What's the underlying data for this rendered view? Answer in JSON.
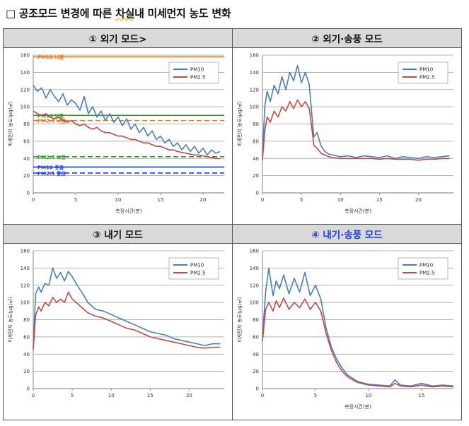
{
  "title": {
    "prefix": "□ 공조모드 변경에 따른 ",
    "underlined": "차실",
    "suffix": "내 미세먼지 농도 변화"
  },
  "panels": [
    {
      "header": "① 외기 모드>",
      "header_color": "#111111"
    },
    {
      "header": "② 외기·송풍 모드",
      "header_color": "#111111"
    },
    {
      "header": "③ 내기 모드",
      "header_color": "#111111"
    },
    {
      "header": "④ 내기·송풍 모드",
      "header_color": "#1f3fd6"
    }
  ],
  "colors": {
    "pm10": "#4a7ebb",
    "pm25": "#be4b48"
  },
  "chart_data": [
    {
      "type": "line",
      "xlabel": "측정시간(분)",
      "ylabel": "미세먼지 농도(μg/㎥)",
      "xlim": [
        0,
        22.5
      ],
      "ylim": [
        0,
        160
      ],
      "xticks": [
        0,
        5,
        10,
        15,
        20
      ],
      "yticks": [
        0,
        20,
        40,
        60,
        80,
        100,
        120,
        140,
        160
      ],
      "legend": "top-right",
      "series": [
        {
          "name": "PM10",
          "color": "#4a7ebb",
          "x": [
            0,
            0.5,
            1,
            1.5,
            2,
            2.5,
            3,
            3.5,
            4,
            4.5,
            5,
            5.5,
            6,
            6.5,
            7,
            7.5,
            8,
            8.5,
            9,
            9.5,
            10,
            10.5,
            11,
            11.5,
            12,
            12.5,
            13,
            13.5,
            14,
            14.5,
            15,
            15.5,
            16,
            16.5,
            17,
            17.5,
            18,
            18.5,
            19,
            19.5,
            20,
            20.5,
            21,
            21.5,
            22
          ],
          "y": [
            125,
            118,
            122,
            110,
            120,
            112,
            106,
            115,
            102,
            108,
            104,
            96,
            112,
            92,
            100,
            88,
            95,
            84,
            92,
            82,
            88,
            78,
            86,
            74,
            80,
            70,
            76,
            66,
            72,
            62,
            66,
            58,
            62,
            54,
            58,
            50,
            56,
            48,
            54,
            46,
            52,
            44,
            50,
            46,
            48
          ]
        },
        {
          "name": "PM2.5",
          "color": "#be4b48",
          "x": [
            0,
            0.5,
            1,
            1.5,
            2,
            2.5,
            3,
            3.5,
            4,
            4.5,
            5,
            5.5,
            6,
            6.5,
            7,
            7.5,
            8,
            8.5,
            9,
            9.5,
            10,
            10.5,
            11,
            11.5,
            12,
            12.5,
            13,
            13.5,
            14,
            14.5,
            15,
            15.5,
            16,
            16.5,
            17,
            17.5,
            18,
            18.5,
            19,
            19.5,
            20,
            20.5,
            21,
            21.5,
            22
          ],
          "y": [
            95,
            92,
            90,
            92,
            88,
            86,
            88,
            84,
            82,
            84,
            80,
            78,
            80,
            76,
            74,
            76,
            72,
            70,
            70,
            68,
            66,
            66,
            64,
            62,
            62,
            60,
            58,
            58,
            56,
            54,
            54,
            52,
            50,
            50,
            48,
            47,
            46,
            45,
            44,
            44,
            43,
            42,
            41,
            40,
            40
          ]
        }
      ],
      "reference_lines": [
        {
          "label": "PM10 나쁨",
          "value": 158,
          "color": "#e07b22",
          "style": "solid"
        },
        {
          "label": "PM10 보통",
          "value": 90,
          "color": "#2d9e2d",
          "style": "solid"
        },
        {
          "label": "PM2.5 나쁨",
          "value": 84,
          "color": "#e07b22",
          "style": "dashed"
        },
        {
          "label": "PM2.5 보통",
          "value": 42,
          "color": "#2d9e2d",
          "style": "dashed"
        },
        {
          "label": "PM10 좋음",
          "value": 30,
          "color": "#1a3fd6",
          "style": "solid"
        },
        {
          "label": "PM2.5 좋음",
          "value": 23,
          "color": "#1a3fd6",
          "style": "dashed"
        }
      ]
    },
    {
      "type": "line",
      "xlabel": "측정시간(분)",
      "ylabel": "미세먼지 농도(μg/㎥)",
      "xlim": [
        0,
        24.5
      ],
      "ylim": [
        0,
        160
      ],
      "xticks": [
        0,
        5,
        10,
        15,
        20
      ],
      "yticks": [
        0,
        20,
        40,
        60,
        80,
        100,
        120,
        140,
        160
      ],
      "legend": "top-right",
      "series": [
        {
          "name": "PM10",
          "color": "#4a7ebb",
          "x": [
            0,
            0.3,
            0.6,
            1,
            1.5,
            2,
            2.5,
            3,
            3.5,
            4,
            4.5,
            5,
            5.5,
            6,
            6.3,
            6.6,
            7,
            7.5,
            8,
            8.5,
            9,
            10,
            11,
            12,
            13,
            14,
            15,
            16,
            17,
            18,
            19,
            20,
            21,
            22,
            23,
            24
          ],
          "y": [
            42,
            100,
            118,
            106,
            125,
            115,
            135,
            120,
            140,
            130,
            148,
            128,
            140,
            126,
            95,
            65,
            70,
            55,
            48,
            45,
            44,
            42,
            43,
            41,
            43,
            42,
            41,
            43,
            40,
            42,
            41,
            40,
            42,
            41,
            42,
            43
          ]
        },
        {
          "name": "PM2.5",
          "color": "#be4b48",
          "x": [
            0,
            0.3,
            0.6,
            1,
            1.5,
            2,
            2.5,
            3,
            3.5,
            4,
            4.5,
            5,
            5.5,
            6,
            6.3,
            6.6,
            7,
            7.5,
            8,
            8.5,
            9,
            10,
            11,
            12,
            13,
            14,
            15,
            16,
            17,
            18,
            19,
            20,
            21,
            22,
            23,
            24
          ],
          "y": [
            38,
            72,
            88,
            82,
            95,
            88,
            100,
            95,
            106,
            98,
            108,
            100,
            106,
            98,
            78,
            55,
            52,
            46,
            44,
            42,
            41,
            40,
            40,
            40,
            40,
            40,
            39,
            40,
            39,
            39,
            39,
            38,
            39,
            39,
            40,
            40
          ]
        }
      ]
    },
    {
      "type": "line",
      "xlabel": "",
      "ylabel": "미세먼지 농도(μg/㎥)",
      "xlim": [
        0,
        24.5
      ],
      "ylim": [
        0,
        160
      ],
      "xticks": [
        0,
        5,
        10,
        15,
        20
      ],
      "yticks": [
        0,
        20,
        40,
        60,
        80,
        100,
        120,
        140,
        160
      ],
      "legend": "top-right",
      "series": [
        {
          "name": "PM10",
          "color": "#4a7ebb",
          "x": [
            0,
            0.3,
            0.7,
            1,
            1.5,
            2,
            2.5,
            3,
            3.5,
            4,
            4.5,
            5,
            5.5,
            6,
            6.5,
            7,
            7.5,
            8,
            9,
            10,
            11,
            12,
            13,
            14,
            15,
            16,
            17,
            18,
            19,
            20,
            21,
            22,
            23,
            24
          ],
          "y": [
            48,
            110,
            118,
            112,
            122,
            120,
            140,
            128,
            135,
            125,
            136,
            130,
            122,
            115,
            108,
            100,
            96,
            92,
            90,
            86,
            82,
            78,
            74,
            70,
            66,
            64,
            62,
            58,
            56,
            54,
            52,
            50,
            52,
            52
          ]
        },
        {
          "name": "PM2.5",
          "color": "#be4b48",
          "x": [
            0,
            0.3,
            0.7,
            1,
            1.5,
            2,
            2.5,
            3,
            3.5,
            4,
            4.5,
            5,
            5.5,
            6,
            6.5,
            7,
            7.5,
            8,
            9,
            10,
            11,
            12,
            13,
            14,
            15,
            16,
            17,
            18,
            19,
            20,
            21,
            22,
            23,
            24
          ],
          "y": [
            45,
            85,
            95,
            90,
            100,
            96,
            106,
            100,
            104,
            100,
            112,
            104,
            100,
            96,
            92,
            88,
            86,
            84,
            82,
            78,
            74,
            70,
            68,
            64,
            60,
            58,
            56,
            54,
            52,
            50,
            48,
            47,
            48,
            48
          ]
        }
      ]
    },
    {
      "type": "line",
      "xlabel": "측정시간(분)",
      "ylabel": "미세먼지 농도(μg/㎥)",
      "xlim": [
        0,
        18
      ],
      "ylim": [
        0,
        160
      ],
      "xticks": [
        0,
        5,
        10,
        15
      ],
      "yticks": [
        0,
        20,
        40,
        60,
        80,
        100,
        120,
        140,
        160
      ],
      "legend": "top-right",
      "series": [
        {
          "name": "PM10",
          "color": "#4a7ebb",
          "x": [
            0,
            0.3,
            0.6,
            1,
            1.3,
            1.6,
            2,
            2.5,
            3,
            3.5,
            4,
            4.5,
            5,
            5.5,
            6,
            6.5,
            7,
            7.5,
            8,
            8.5,
            9,
            10,
            11,
            12,
            12.5,
            13,
            14,
            15,
            16,
            17,
            18
          ],
          "y": [
            60,
            112,
            140,
            108,
            125,
            116,
            132,
            110,
            128,
            112,
            135,
            108,
            120,
            104,
            70,
            48,
            34,
            24,
            16,
            12,
            8,
            5,
            4,
            3,
            10,
            4,
            3,
            6,
            3,
            4,
            3
          ]
        },
        {
          "name": "PM2.5",
          "color": "#be4b48",
          "x": [
            0,
            0.3,
            0.6,
            1,
            1.3,
            1.6,
            2,
            2.5,
            3,
            3.5,
            4,
            4.5,
            5,
            5.5,
            6,
            6.5,
            7,
            7.5,
            8,
            8.5,
            9,
            10,
            11,
            12,
            12.5,
            13,
            14,
            15,
            16,
            17,
            18
          ],
          "y": [
            55,
            92,
            100,
            90,
            102,
            94,
            105,
            92,
            100,
            94,
            104,
            92,
            100,
            90,
            64,
            44,
            30,
            20,
            14,
            10,
            7,
            4,
            3,
            2,
            6,
            3,
            2,
            4,
            2,
            3,
            2
          ]
        }
      ]
    }
  ]
}
